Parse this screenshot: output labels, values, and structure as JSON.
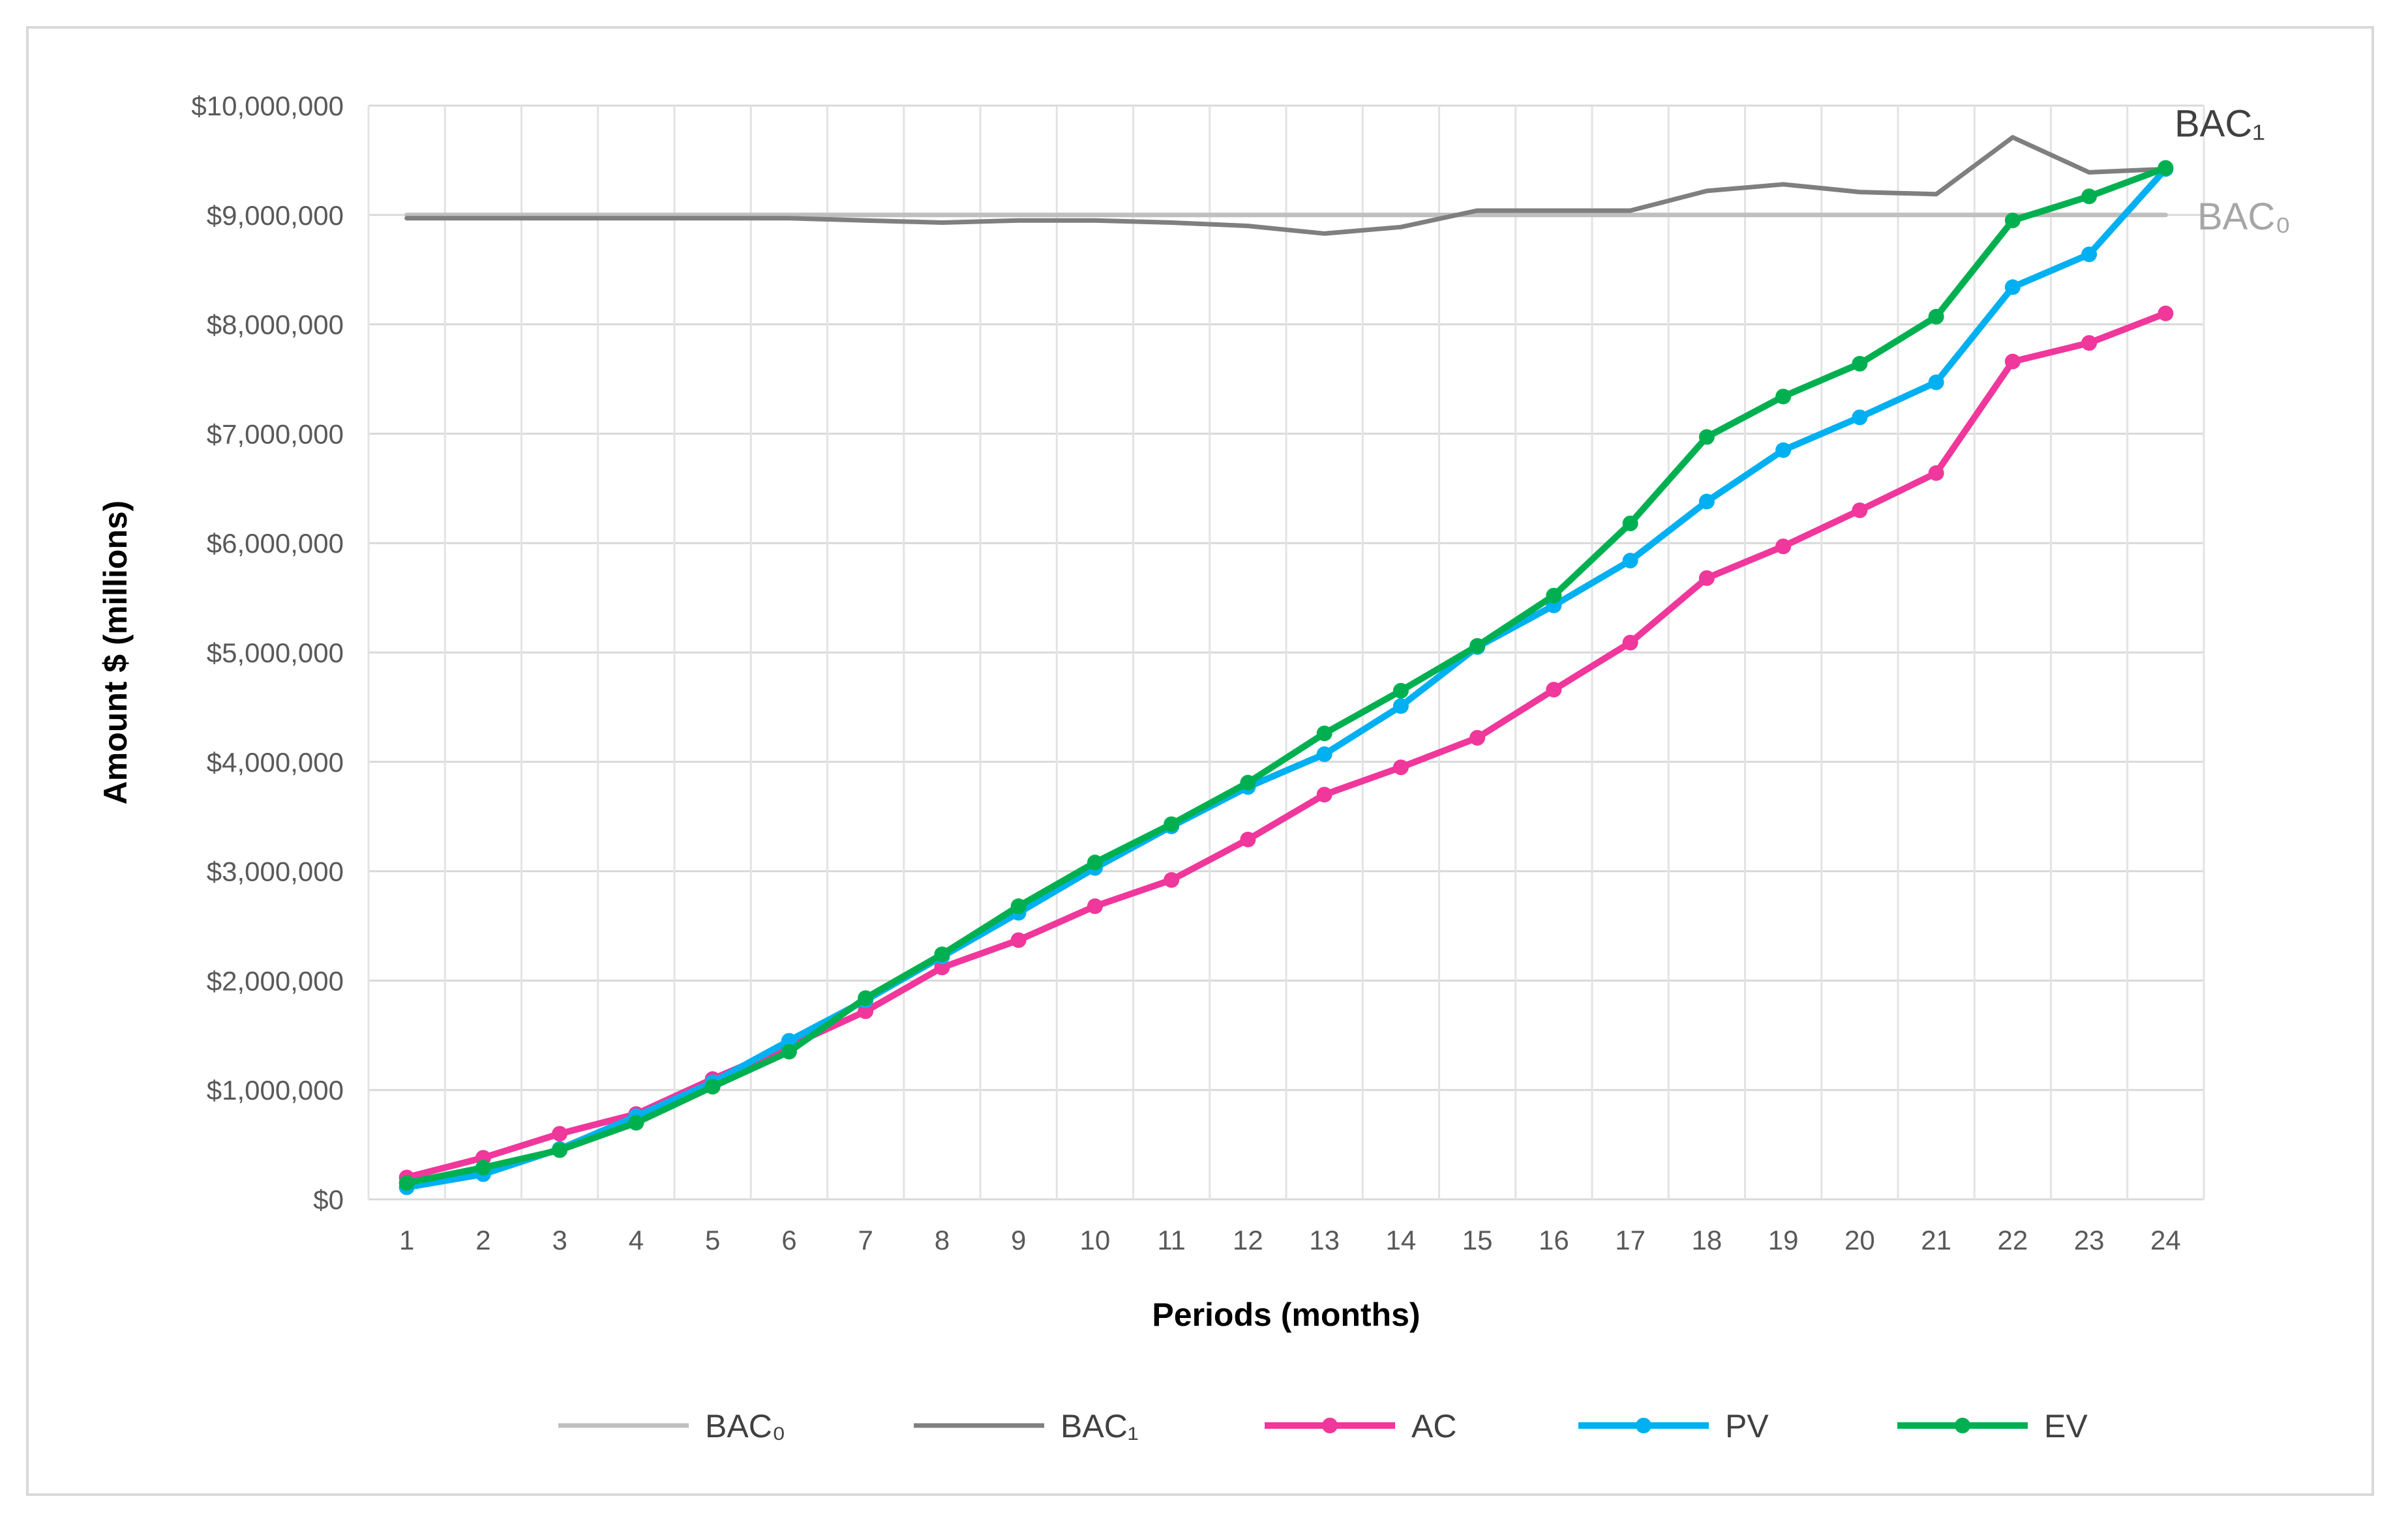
{
  "chart_data": {
    "type": "line",
    "xlabel": "Periods (months)",
    "ylabel": "Amount $ (millions)",
    "ylim": [
      0,
      10000000
    ],
    "yticks": [
      0,
      1000000,
      2000000,
      3000000,
      4000000,
      5000000,
      6000000,
      7000000,
      8000000,
      9000000,
      10000000
    ],
    "ytick_labels": [
      "$0",
      "$1,000,000",
      "$2,000,000",
      "$3,000,000",
      "$4,000,000",
      "$5,000,000",
      "$6,000,000",
      "$7,000,000",
      "$8,000,000",
      "$9,000,000",
      "$10,000,000"
    ],
    "x": [
      1,
      2,
      3,
      4,
      5,
      6,
      7,
      8,
      9,
      10,
      11,
      12,
      13,
      14,
      15,
      16,
      17,
      18,
      19,
      20,
      21,
      22,
      23,
      24
    ],
    "grid": true,
    "legend_position": "bottom",
    "series": [
      {
        "name": "BAC₀",
        "color": "#bfbfbf",
        "markers": false,
        "values": [
          9000000,
          9000000,
          9000000,
          9000000,
          9000000,
          9000000,
          9000000,
          9000000,
          9000000,
          9000000,
          9000000,
          9000000,
          9000000,
          9000000,
          9000000,
          9000000,
          9000000,
          9000000,
          9000000,
          9000000,
          9000000,
          9000000,
          9000000,
          9000000
        ]
      },
      {
        "name": "BAC₁",
        "color": "#7f7f7f",
        "markers": false,
        "values": [
          8970000,
          8970000,
          8970000,
          8970000,
          8970000,
          8970000,
          8950000,
          8930000,
          8950000,
          8950000,
          8930000,
          8900000,
          8830000,
          8890000,
          9040000,
          9040000,
          9040000,
          9220000,
          9280000,
          9210000,
          9190000,
          9710000,
          9390000,
          9420000
        ]
      },
      {
        "name": "AC",
        "color": "#f0379b",
        "markers": true,
        "values": [
          200000,
          380000,
          600000,
          780000,
          1100000,
          1400000,
          1720000,
          2120000,
          2370000,
          2680000,
          2920000,
          3290000,
          3700000,
          3950000,
          4220000,
          4660000,
          5090000,
          5680000,
          5970000,
          6300000,
          6640000,
          7660000,
          7830000,
          8100000
        ]
      },
      {
        "name": "PV",
        "color": "#00b0f0",
        "markers": true,
        "values": [
          110000,
          230000,
          460000,
          760000,
          1070000,
          1450000,
          1820000,
          2220000,
          2620000,
          3030000,
          3410000,
          3770000,
          4070000,
          4510000,
          5050000,
          5430000,
          5840000,
          6380000,
          6850000,
          7150000,
          7470000,
          8340000,
          8640000,
          9420000
        ]
      },
      {
        "name": "EV",
        "color": "#00b050",
        "markers": true,
        "values": [
          150000,
          290000,
          450000,
          700000,
          1030000,
          1350000,
          1840000,
          2240000,
          2680000,
          3080000,
          3430000,
          3810000,
          4260000,
          4650000,
          5060000,
          5520000,
          6180000,
          6970000,
          7340000,
          7640000,
          8070000,
          8950000,
          9170000,
          9430000
        ]
      }
    ],
    "annotations": [
      {
        "text": "BAC₁",
        "series": "BAC₁"
      },
      {
        "text": "BAC₀",
        "series": "BAC₀"
      }
    ]
  }
}
